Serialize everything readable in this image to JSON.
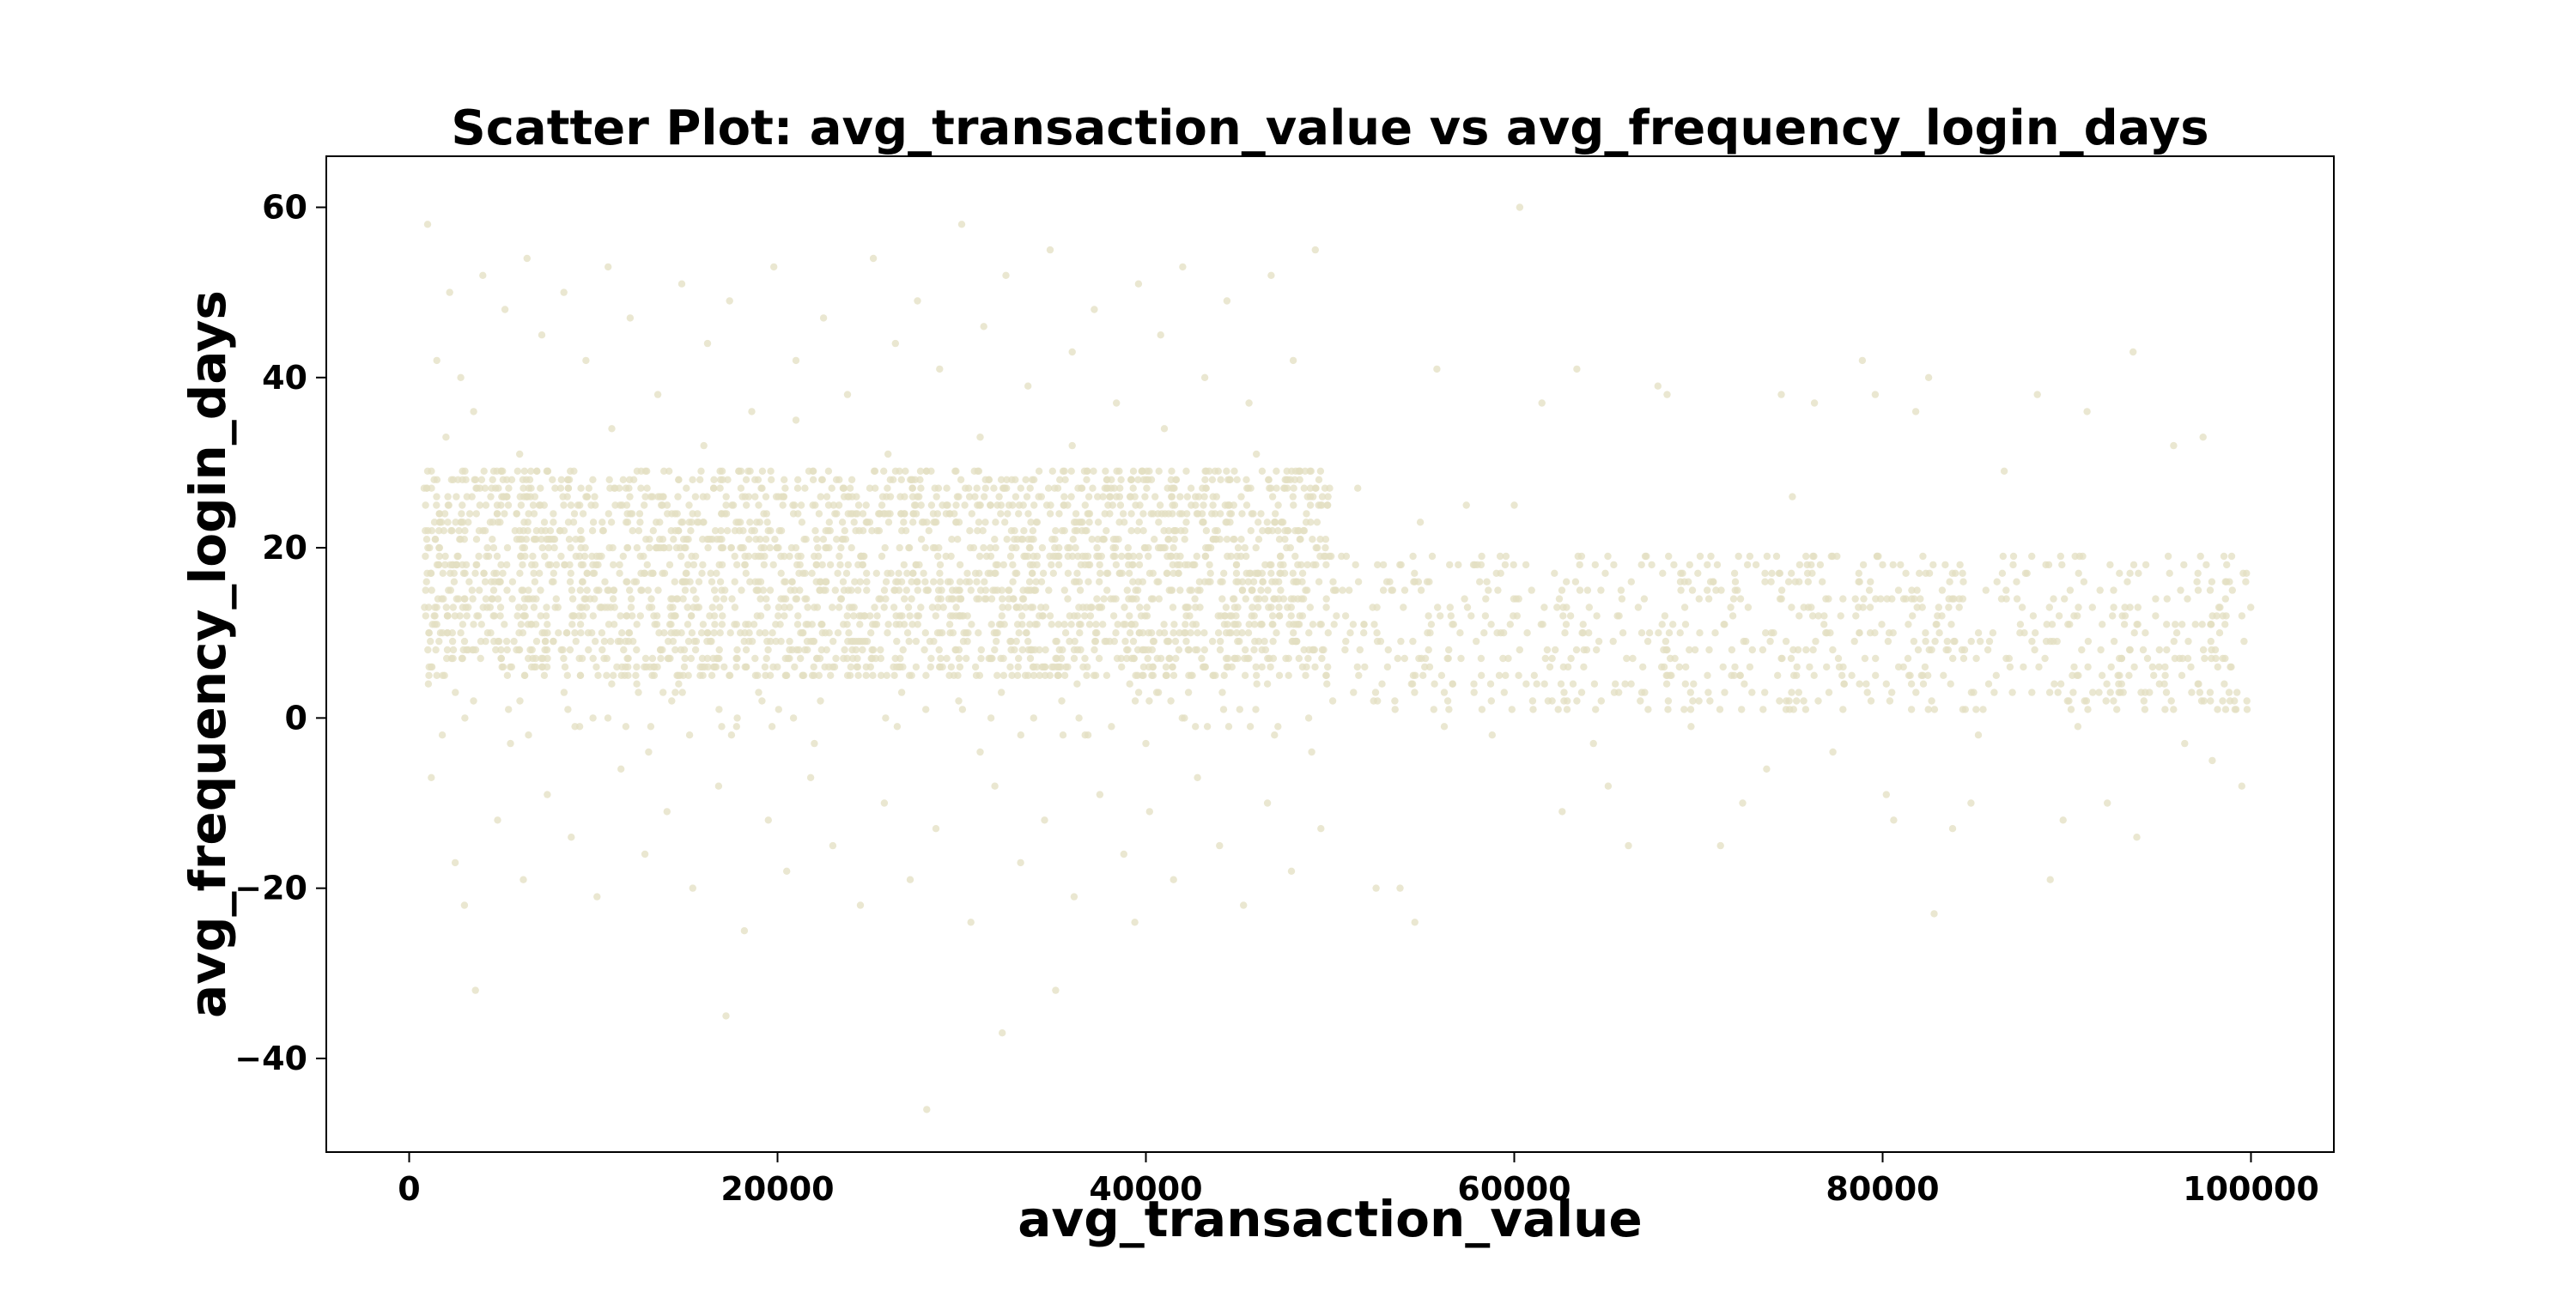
{
  "chart_data": {
    "type": "scatter",
    "title": "Scatter Plot: avg_transaction_value vs avg_frequency_login_days",
    "xlabel": "avg_transaction_value",
    "ylabel": "avg_frequency_login_days",
    "xlim": [
      -4500,
      104500
    ],
    "ylim": [
      -51,
      66
    ],
    "xticks": [
      0,
      20000,
      40000,
      60000,
      80000,
      100000
    ],
    "xtick_labels": [
      "0",
      "20000",
      "40000",
      "60000",
      "80000",
      "100000"
    ],
    "yticks": [
      -40,
      -20,
      0,
      20,
      40,
      60
    ],
    "ytick_labels": [
      "−40",
      "−20",
      "0",
      "20",
      "40",
      "60"
    ],
    "grid": false,
    "point_color": "#e3dfc1",
    "series": [
      {
        "values_description_none": true,
        "points_dense_cluster_a": {
          "x_range": [
            800,
            50000
          ],
          "y_range": [
            5,
            29
          ],
          "y_step": 1
        },
        "points_dense_cluster_b": {
          "x_range": [
            50000,
            100000
          ],
          "y_range": [
            1,
            19
          ],
          "y_step": 1
        },
        "outliers": [
          [
            1000,
            58
          ],
          [
            1500,
            42
          ],
          [
            2200,
            50
          ],
          [
            2800,
            40
          ],
          [
            3500,
            36
          ],
          [
            4000,
            52
          ],
          [
            5200,
            48
          ],
          [
            6400,
            54
          ],
          [
            7200,
            45
          ],
          [
            8400,
            50
          ],
          [
            9600,
            42
          ],
          [
            10800,
            53
          ],
          [
            12000,
            47
          ],
          [
            13500,
            38
          ],
          [
            14800,
            51
          ],
          [
            16200,
            44
          ],
          [
            17400,
            49
          ],
          [
            18600,
            36
          ],
          [
            19800,
            53
          ],
          [
            21000,
            42
          ],
          [
            22500,
            47
          ],
          [
            23800,
            38
          ],
          [
            25200,
            54
          ],
          [
            26400,
            44
          ],
          [
            27600,
            49
          ],
          [
            28800,
            41
          ],
          [
            30000,
            58
          ],
          [
            31200,
            46
          ],
          [
            32400,
            52
          ],
          [
            33600,
            39
          ],
          [
            34800,
            55
          ],
          [
            36000,
            43
          ],
          [
            37200,
            48
          ],
          [
            38400,
            37
          ],
          [
            39600,
            51
          ],
          [
            40800,
            45
          ],
          [
            42000,
            53
          ],
          [
            43200,
            40
          ],
          [
            44400,
            49
          ],
          [
            45600,
            37
          ],
          [
            46800,
            52
          ],
          [
            48000,
            42
          ],
          [
            49200,
            55
          ],
          [
            2000,
            33
          ],
          [
            6000,
            31
          ],
          [
            11000,
            34
          ],
          [
            16000,
            32
          ],
          [
            21000,
            35
          ],
          [
            26000,
            31
          ],
          [
            31000,
            33
          ],
          [
            36000,
            32
          ],
          [
            41000,
            34
          ],
          [
            46000,
            31
          ],
          [
            1200,
            -7
          ],
          [
            2500,
            -17
          ],
          [
            3000,
            -22
          ],
          [
            3600,
            -32
          ],
          [
            4800,
            -12
          ],
          [
            6200,
            -19
          ],
          [
            7500,
            -9
          ],
          [
            8800,
            -14
          ],
          [
            10200,
            -21
          ],
          [
            11500,
            -6
          ],
          [
            12800,
            -16
          ],
          [
            14000,
            -11
          ],
          [
            15400,
            -20
          ],
          [
            16800,
            -8
          ],
          [
            17200,
            -35
          ],
          [
            18200,
            -25
          ],
          [
            19500,
            -12
          ],
          [
            20500,
            -18
          ],
          [
            21800,
            -7
          ],
          [
            23000,
            -15
          ],
          [
            24500,
            -22
          ],
          [
            25800,
            -10
          ],
          [
            27200,
            -19
          ],
          [
            28100,
            -46
          ],
          [
            28600,
            -13
          ],
          [
            30500,
            -24
          ],
          [
            31800,
            -8
          ],
          [
            32200,
            -37
          ],
          [
            33200,
            -17
          ],
          [
            34500,
            -12
          ],
          [
            35100,
            -32
          ],
          [
            36100,
            -21
          ],
          [
            37500,
            -9
          ],
          [
            38800,
            -16
          ],
          [
            39400,
            -24
          ],
          [
            40200,
            -11
          ],
          [
            41500,
            -19
          ],
          [
            42800,
            -7
          ],
          [
            44000,
            -15
          ],
          [
            45300,
            -22
          ],
          [
            46600,
            -10
          ],
          [
            47900,
            -18
          ],
          [
            49500,
            -13
          ],
          [
            1800,
            -2
          ],
          [
            5500,
            -3
          ],
          [
            9000,
            -1
          ],
          [
            13000,
            -4
          ],
          [
            17500,
            -2
          ],
          [
            22000,
            -3
          ],
          [
            26500,
            -1
          ],
          [
            31000,
            -4
          ],
          [
            35500,
            -2
          ],
          [
            40000,
            -3
          ],
          [
            44500,
            -1
          ],
          [
            49000,
            -4
          ],
          [
            51500,
            27
          ],
          [
            52500,
            -20
          ],
          [
            53800,
            -20
          ],
          [
            54600,
            -24
          ],
          [
            54900,
            23
          ],
          [
            55800,
            41
          ],
          [
            57400,
            25
          ],
          [
            60300,
            60
          ],
          [
            60000,
            25
          ],
          [
            61500,
            37
          ],
          [
            62600,
            -11
          ],
          [
            63400,
            41
          ],
          [
            65100,
            -8
          ],
          [
            66200,
            -15
          ],
          [
            67800,
            39
          ],
          [
            68300,
            38
          ],
          [
            71200,
            -15
          ],
          [
            72400,
            -10
          ],
          [
            73700,
            -6
          ],
          [
            74500,
            38
          ],
          [
            75100,
            26
          ],
          [
            76300,
            37
          ],
          [
            78900,
            42
          ],
          [
            79600,
            38
          ],
          [
            80200,
            -9
          ],
          [
            80600,
            -12
          ],
          [
            81800,
            36
          ],
          [
            82500,
            40
          ],
          [
            82800,
            -23
          ],
          [
            83800,
            -13
          ],
          [
            84800,
            -10
          ],
          [
            86600,
            29
          ],
          [
            88400,
            38
          ],
          [
            89100,
            -19
          ],
          [
            89800,
            -12
          ],
          [
            91100,
            36
          ],
          [
            92200,
            -10
          ],
          [
            93600,
            43
          ],
          [
            93800,
            -14
          ],
          [
            95800,
            32
          ],
          [
            97400,
            33
          ],
          [
            97900,
            -5
          ],
          [
            99500,
            -8
          ],
          [
            56200,
            -1
          ],
          [
            58800,
            -2
          ],
          [
            64300,
            -3
          ],
          [
            69600,
            -1
          ],
          [
            77300,
            -4
          ],
          [
            85200,
            -2
          ],
          [
            90600,
            -1
          ],
          [
            96400,
            -3
          ]
        ]
      }
    ]
  }
}
